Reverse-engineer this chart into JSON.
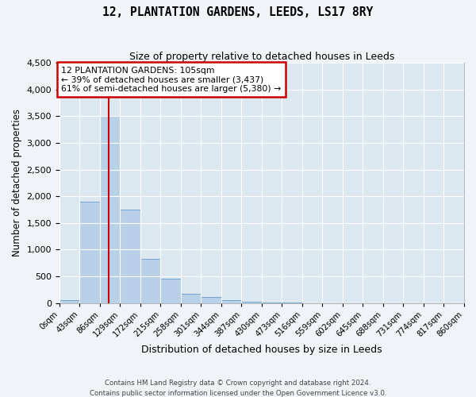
{
  "title": "12, PLANTATION GARDENS, LEEDS, LS17 8RY",
  "subtitle": "Size of property relative to detached houses in Leeds",
  "xlabel": "Distribution of detached houses by size in Leeds",
  "ylabel": "Number of detached properties",
  "bar_color": "#b8d0e8",
  "bar_edge_color": "#6699cc",
  "background_color": "#dce8f0",
  "grid_color": "#ffffff",
  "fig_bg_color": "#f0f4f8",
  "bin_edges": [
    0,
    43,
    86,
    129,
    172,
    215,
    258,
    301,
    344,
    387,
    430,
    473,
    516,
    559,
    602,
    645,
    688,
    731,
    774,
    817,
    860
  ],
  "bin_labels": [
    "0sqm",
    "43sqm",
    "86sqm",
    "129sqm",
    "172sqm",
    "215sqm",
    "258sqm",
    "301sqm",
    "344sqm",
    "387sqm",
    "430sqm",
    "473sqm",
    "516sqm",
    "559sqm",
    "602sqm",
    "645sqm",
    "688sqm",
    "731sqm",
    "774sqm",
    "817sqm",
    "860sqm"
  ],
  "bar_heights": [
    50,
    1900,
    3500,
    1750,
    830,
    450,
    175,
    105,
    55,
    30,
    5,
    2,
    0,
    0,
    0,
    0,
    0,
    0,
    0,
    0
  ],
  "property_label": "12 PLANTATION GARDENS: 105sqm",
  "annotation_line1": "← 39% of detached houses are smaller (3,437)",
  "annotation_line2": "61% of semi-detached houses are larger (5,380) →",
  "red_line_x": 105,
  "ylim": [
    0,
    4500
  ],
  "yticks": [
    0,
    500,
    1000,
    1500,
    2000,
    2500,
    3000,
    3500,
    4000,
    4500
  ],
  "footer_line1": "Contains HM Land Registry data © Crown copyright and database right 2024.",
  "footer_line2": "Contains public sector information licensed under the Open Government Licence v3.0.",
  "annotation_box_color": "#ffffff",
  "annotation_box_edge": "#cc0000",
  "red_line_color": "#cc0000"
}
